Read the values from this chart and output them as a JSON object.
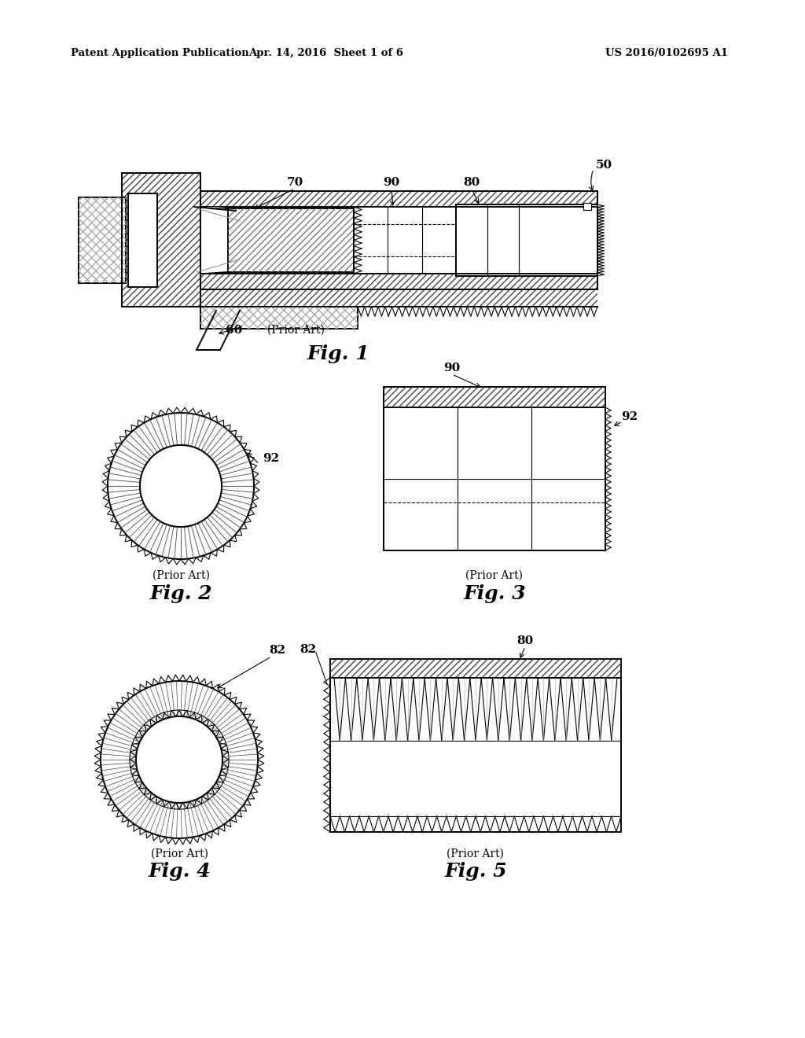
{
  "header_left": "Patent Application Publication",
  "header_mid": "Apr. 14, 2016  Sheet 1 of 6",
  "header_right": "US 2016/0102695 A1",
  "fig1_label": "Fig. 1",
  "fig1_prior": "(Prior Art)",
  "fig2_label": "Fig. 2",
  "fig2_prior": "(Prior Art)",
  "fig3_label": "Fig. 3",
  "fig3_prior": "(Prior Art)",
  "fig4_label": "Fig. 4",
  "fig4_prior": "(Prior Art)",
  "fig5_label": "Fig. 5",
  "fig5_prior": "(Prior Art)",
  "bg_color": "#ffffff",
  "line_color": "#000000",
  "label_50": "50",
  "label_60": "60",
  "label_70": "70",
  "label_80": "80",
  "label_90": "90",
  "label_92_fig2": "92",
  "label_90_fig3": "90",
  "label_92_fig3": "92",
  "label_82_fig4": "82",
  "label_82_fig5": "82",
  "label_80_fig5": "80"
}
